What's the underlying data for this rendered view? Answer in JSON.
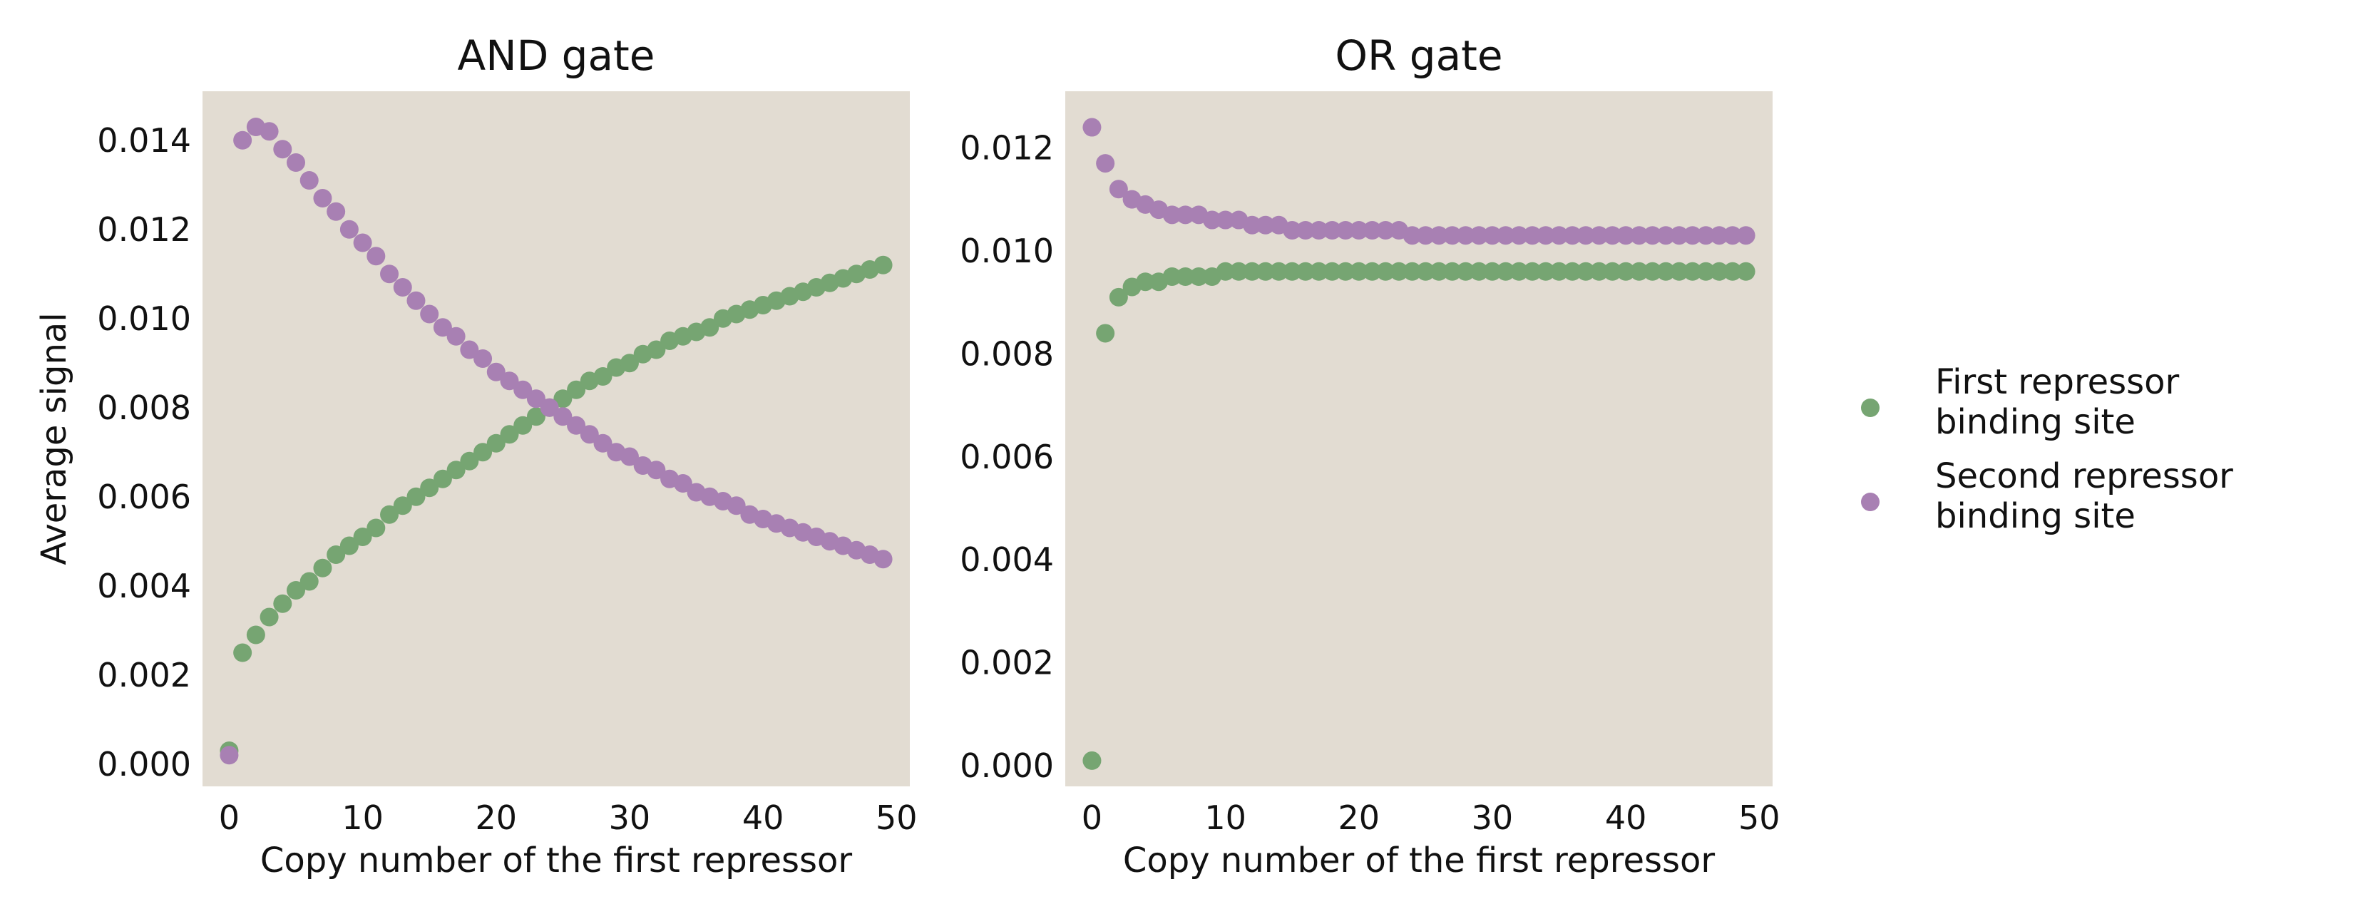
{
  "colors": {
    "background": "#e2dcd2",
    "series1": "#76a572",
    "series2": "#a880b3",
    "text": "#111111"
  },
  "legend": {
    "position": "right",
    "entries": [
      {
        "lines": [
          "First repressor",
          "binding site"
        ],
        "color": "#76a572"
      },
      {
        "lines": [
          "Second repressor",
          "binding site"
        ],
        "color": "#a880b3"
      }
    ]
  },
  "chart_data": [
    {
      "type": "scatter",
      "title": "AND gate",
      "xlabel": "Copy number of the first repressor",
      "ylabel": "Average signal",
      "xlim": [
        -2,
        51
      ],
      "ylim": [
        -0.0005,
        0.0151
      ],
      "xticks": [
        0,
        10,
        20,
        30,
        40,
        50
      ],
      "xtick_labels": [
        "0",
        "10",
        "20",
        "30",
        "40",
        "50"
      ],
      "yticks": [
        0,
        0.002,
        0.004,
        0.006,
        0.008,
        0.01,
        0.012,
        0.014
      ],
      "ytick_labels": [
        "0.000",
        "0.002",
        "0.004",
        "0.006",
        "0.008",
        "0.010",
        "0.012",
        "0.014"
      ],
      "grid": false,
      "x": [
        0,
        1,
        2,
        3,
        4,
        5,
        6,
        7,
        8,
        9,
        10,
        11,
        12,
        13,
        14,
        15,
        16,
        17,
        18,
        19,
        20,
        21,
        22,
        23,
        24,
        25,
        26,
        27,
        28,
        29,
        30,
        31,
        32,
        33,
        34,
        35,
        36,
        37,
        38,
        39,
        40,
        41,
        42,
        43,
        44,
        45,
        46,
        47,
        48,
        49
      ],
      "series": [
        {
          "name": "First repressor binding site",
          "color": "#76a572",
          "values": [
            0.0003,
            0.0025,
            0.0029,
            0.0033,
            0.0036,
            0.0039,
            0.0041,
            0.0044,
            0.0047,
            0.0049,
            0.0051,
            0.0053,
            0.0056,
            0.0058,
            0.006,
            0.0062,
            0.0064,
            0.0066,
            0.0068,
            0.007,
            0.0072,
            0.0074,
            0.0076,
            0.0078,
            0.008,
            0.0082,
            0.0084,
            0.0086,
            0.0087,
            0.0089,
            0.009,
            0.0092,
            0.0093,
            0.0095,
            0.0096,
            0.0097,
            0.0098,
            0.01,
            0.0101,
            0.0102,
            0.0103,
            0.0104,
            0.0105,
            0.0106,
            0.0107,
            0.0108,
            0.0109,
            0.011,
            0.0111,
            0.0112
          ]
        },
        {
          "name": "Second repressor binding site",
          "color": "#a880b3",
          "values": [
            0.0002,
            0.014,
            0.0143,
            0.0142,
            0.0138,
            0.0135,
            0.0131,
            0.0127,
            0.0124,
            0.012,
            0.0117,
            0.0114,
            0.011,
            0.0107,
            0.0104,
            0.0101,
            0.0098,
            0.0096,
            0.0093,
            0.0091,
            0.0088,
            0.0086,
            0.0084,
            0.0082,
            0.008,
            0.0078,
            0.0076,
            0.0074,
            0.0072,
            0.007,
            0.0069,
            0.0067,
            0.0066,
            0.0064,
            0.0063,
            0.0061,
            0.006,
            0.0059,
            0.0058,
            0.0056,
            0.0055,
            0.0054,
            0.0053,
            0.0052,
            0.0051,
            0.005,
            0.0049,
            0.0048,
            0.0047,
            0.0046
          ]
        }
      ]
    },
    {
      "type": "scatter",
      "title": "OR gate",
      "xlabel": "Copy number of the first repressor",
      "ylabel": "",
      "xlim": [
        -2,
        51
      ],
      "ylim": [
        -0.0004,
        0.0131
      ],
      "xticks": [
        0,
        10,
        20,
        30,
        40,
        50
      ],
      "xtick_labels": [
        "0",
        "10",
        "20",
        "30",
        "40",
        "50"
      ],
      "yticks": [
        0,
        0.002,
        0.004,
        0.006,
        0.008,
        0.01,
        0.012
      ],
      "ytick_labels": [
        "0.000",
        "0.002",
        "0.004",
        "0.006",
        "0.008",
        "0.010",
        "0.012"
      ],
      "grid": false,
      "x": [
        0,
        1,
        2,
        3,
        4,
        5,
        6,
        7,
        8,
        9,
        10,
        11,
        12,
        13,
        14,
        15,
        16,
        17,
        18,
        19,
        20,
        21,
        22,
        23,
        24,
        25,
        26,
        27,
        28,
        29,
        30,
        31,
        32,
        33,
        34,
        35,
        36,
        37,
        38,
        39,
        40,
        41,
        42,
        43,
        44,
        45,
        46,
        47,
        48,
        49
      ],
      "series": [
        {
          "name": "First repressor binding site",
          "color": "#76a572",
          "values": [
            0.0001,
            0.0084,
            0.0091,
            0.0093,
            0.0094,
            0.0094,
            0.0095,
            0.0095,
            0.0095,
            0.0095,
            0.0096,
            0.0096,
            0.0096,
            0.0096,
            0.0096,
            0.0096,
            0.0096,
            0.0096,
            0.0096,
            0.0096,
            0.0096,
            0.0096,
            0.0096,
            0.0096,
            0.0096,
            0.0096,
            0.0096,
            0.0096,
            0.0096,
            0.0096,
            0.0096,
            0.0096,
            0.0096,
            0.0096,
            0.0096,
            0.0096,
            0.0096,
            0.0096,
            0.0096,
            0.0096,
            0.0096,
            0.0096,
            0.0096,
            0.0096,
            0.0096,
            0.0096,
            0.0096,
            0.0096,
            0.0096,
            0.0096
          ]
        },
        {
          "name": "Second repressor binding site",
          "color": "#a880b3",
          "values": [
            0.0124,
            0.0117,
            0.0112,
            0.011,
            0.0109,
            0.0108,
            0.0107,
            0.0107,
            0.0107,
            0.0106,
            0.0106,
            0.0106,
            0.0105,
            0.0105,
            0.0105,
            0.0104,
            0.0104,
            0.0104,
            0.0104,
            0.0104,
            0.0104,
            0.0104,
            0.0104,
            0.0104,
            0.0103,
            0.0103,
            0.0103,
            0.0103,
            0.0103,
            0.0103,
            0.0103,
            0.0103,
            0.0103,
            0.0103,
            0.0103,
            0.0103,
            0.0103,
            0.0103,
            0.0103,
            0.0103,
            0.0103,
            0.0103,
            0.0103,
            0.0103,
            0.0103,
            0.0103,
            0.0103,
            0.0103,
            0.0103,
            0.0103
          ]
        }
      ]
    }
  ]
}
